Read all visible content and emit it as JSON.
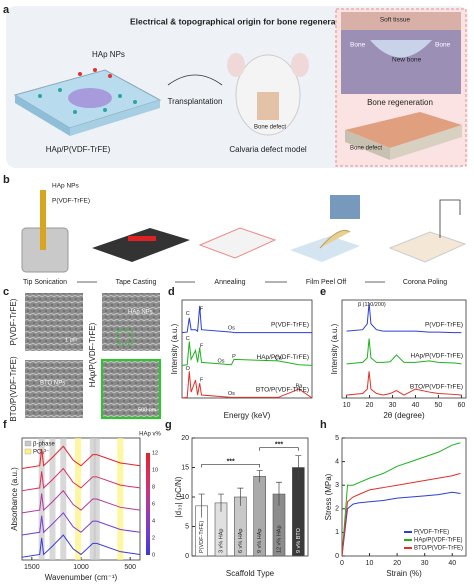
{
  "panels": [
    "a",
    "b",
    "c",
    "d",
    "e",
    "f",
    "g",
    "h"
  ],
  "panel_a": {
    "title": "Electrical & topographical origin for bone regeneration",
    "film_label": "HAp NPs",
    "film_name": "HAp/P(VDF-TrFE)",
    "arrow_label": "Transplantation",
    "defect_label": "Bone defect",
    "model_label": "Calvaria defect model",
    "inset_top": [
      "Soft tissue",
      "Bone",
      "New bone",
      "Bone"
    ],
    "inset_caption": "Bone regeneration",
    "inset_bottom": "Bone defect"
  },
  "panel_b": {
    "inputs": [
      "HAp NPs",
      "P(VDF-TrFE)"
    ],
    "steps": [
      "Tip Sonication",
      "Tape Casting",
      "Annealing",
      "Film Peel Off",
      "Corona Poling"
    ]
  },
  "panel_c": {
    "rows": [
      "P(VDF-TrFE)",
      "BTO/P(VDF-TrFE)"
    ],
    "col": "HAp/P(VDF-TrFE)",
    "np_labels": [
      "HAp NPs",
      "BTO NPs"
    ],
    "scales": [
      "1 μm",
      "500 nm"
    ]
  },
  "chart_data": [
    {
      "type": "line",
      "xlabel": "Energy (keV)",
      "ylabel": "Intensity (a.u.)",
      "xlim": [
        0,
        5
      ],
      "ylim": [
        0,
        3.3
      ],
      "legend": "inline",
      "x": [
        0,
        0.2,
        0.28,
        0.35,
        0.52,
        0.6,
        0.68,
        0.75,
        1.9,
        2.0,
        3.7,
        4.5,
        5
      ],
      "series": [
        {
          "name": "P(VDF-TrFE)",
          "color": "#2b3fd6",
          "values": [
            2.2,
            2.22,
            2.7,
            2.3,
            2.3,
            2.25,
            3.1,
            2.3,
            2.22,
            2.2,
            2.2,
            2.2,
            2.2
          ]
        },
        {
          "name": "HAp/P(VDF-TrFE)",
          "color": "#1db31d",
          "values": [
            1.1,
            1.12,
            1.9,
            1.3,
            1.6,
            1.2,
            1.7,
            1.2,
            1.12,
            1.3,
            1.25,
            1.12,
            1.1
          ]
        },
        {
          "name": "BTO/P(VDF-TrFE)",
          "color": "#e0302a",
          "values": [
            0,
            0.02,
            0.9,
            0.2,
            0.6,
            0.1,
            0.5,
            0.1,
            0.02,
            0.02,
            0.02,
            0.3,
            0
          ]
        }
      ],
      "annotations": [
        {
          "text": "C",
          "x": 0.22,
          "y": 2.85
        },
        {
          "text": "F",
          "x": 0.75,
          "y": 3.0
        },
        {
          "text": "Os",
          "x": 1.9,
          "y": 2.35
        },
        {
          "text": "C",
          "x": 0.22,
          "y": 2.0
        },
        {
          "text": "F",
          "x": 0.75,
          "y": 1.75
        },
        {
          "text": "Os",
          "x": 1.5,
          "y": 1.25
        },
        {
          "text": "P",
          "x": 2.0,
          "y": 1.4
        },
        {
          "text": "Ca",
          "x": 3.7,
          "y": 1.35
        },
        {
          "text": "O",
          "x": 0.22,
          "y": 1.0
        },
        {
          "text": "F",
          "x": 0.75,
          "y": 0.6
        },
        {
          "text": "Os",
          "x": 1.9,
          "y": 0.15
        },
        {
          "text": "Ba",
          "x": 4.5,
          "y": 0.4
        }
      ]
    },
    {
      "type": "line",
      "xlabel": "2θ (degree)",
      "ylabel": "Intensity (a.u.)",
      "xlim": [
        8,
        62
      ],
      "ylim": [
        0,
        3.3
      ],
      "xticks": [
        10,
        20,
        30,
        40,
        50,
        60
      ],
      "legend": "inline",
      "x": [
        10,
        17,
        19,
        19.8,
        20.6,
        23,
        26,
        29,
        31.7,
        35,
        40,
        46,
        50,
        57,
        60
      ],
      "series": [
        {
          "name": "P(VDF-TrFE)",
          "color": "#2b3fd6",
          "values": [
            2.25,
            2.3,
            2.5,
            3.2,
            2.5,
            2.3,
            2.25,
            2.25,
            2.25,
            2.25,
            2.25,
            2.22,
            2.22,
            2.2,
            2.2
          ]
        },
        {
          "name": "HAp/P(VDF-TrFE)",
          "color": "#1db31d",
          "values": [
            1.15,
            1.2,
            1.35,
            2.0,
            1.35,
            1.2,
            1.2,
            1.22,
            1.45,
            1.2,
            1.2,
            1.25,
            1.2,
            1.18,
            1.15
          ]
        },
        {
          "name": "BTO/P(VDF-TrFE)",
          "color": "#e0302a",
          "values": [
            0.1,
            0.15,
            0.3,
            0.9,
            0.3,
            0.15,
            0.1,
            0.15,
            0.25,
            0.1,
            0.3,
            0.2,
            0.15,
            0.12,
            0.1
          ]
        }
      ],
      "annotations": [
        {
          "text": "β (110/200)",
          "x": 21,
          "y": 3.15
        }
      ]
    },
    {
      "type": "line",
      "xlabel": "Wavenumber (cm⁻¹)",
      "ylabel": "Absorbance (a.u.)",
      "xlim": [
        1600,
        400
      ],
      "ylim": [
        0,
        4.4
      ],
      "xticks": [
        1500,
        1000,
        500
      ],
      "x": [
        1600,
        1420,
        1400,
        1380,
        1290,
        1180,
        1080,
        1000,
        880,
        840,
        600,
        400
      ],
      "bands": [
        {
          "name": "β-phase",
          "color": "#c8c8c8",
          "x": [
            1400,
            1290,
            1180,
            880,
            840
          ]
        },
        {
          "name": "PO₄³⁻",
          "color": "#fff27a",
          "x": [
            1030,
            600
          ]
        }
      ],
      "colorbar": {
        "label": "HAp v%",
        "lim": [
          0,
          12
        ],
        "ticks": [
          0,
          2,
          4,
          6,
          8,
          10,
          12
        ]
      },
      "series": [
        {
          "color": "#3b3bd6",
          "values": [
            0.1,
            0.2,
            0.8,
            0.2,
            0.5,
            0.9,
            0.4,
            0.2,
            0.6,
            0.6,
            0.3,
            0.2
          ]
        },
        {
          "color": "#7a3bd0",
          "values": [
            0.9,
            1.0,
            1.6,
            1.0,
            1.3,
            1.7,
            1.2,
            1.0,
            1.4,
            1.4,
            1.1,
            1.0
          ]
        },
        {
          "color": "#b03aa0",
          "values": [
            1.7,
            1.8,
            2.4,
            1.8,
            2.1,
            2.5,
            2.0,
            1.8,
            2.2,
            2.2,
            1.9,
            1.8
          ]
        },
        {
          "color": "#d93060",
          "values": [
            2.5,
            2.6,
            3.2,
            2.6,
            2.9,
            3.3,
            2.8,
            2.6,
            3.0,
            3.0,
            2.7,
            2.6
          ]
        },
        {
          "color": "#e8202a",
          "values": [
            3.3,
            3.4,
            4.0,
            3.4,
            3.7,
            4.1,
            3.6,
            3.4,
            3.8,
            3.8,
            3.5,
            3.4
          ]
        }
      ]
    },
    {
      "type": "bar",
      "xlabel": "Scaffold Type",
      "ylabel": "|d₃₃| (pC/N)",
      "ylim": [
        0,
        20
      ],
      "yticks": [
        0,
        5,
        10,
        15,
        20
      ],
      "categories": [
        "P(VDF-TrFE)",
        "3 v% HAp",
        "6 v% HAp",
        "9 v% HAp",
        "12 v% HAp",
        "9 v% BTO"
      ],
      "values": [
        8.5,
        9,
        10,
        13.5,
        10.5,
        15
      ],
      "errors": [
        2,
        1.5,
        1.5,
        1,
        2,
        2
      ],
      "colors": [
        "#ffffff",
        "#e0e0e0",
        "#c8c8c8",
        "#aaaaaa",
        "#8c8c8c",
        "#3a3a3a"
      ],
      "significance": [
        {
          "from": 0,
          "to": 3,
          "label": "***"
        },
        {
          "from": 3,
          "to": 5,
          "label": "***"
        }
      ]
    },
    {
      "type": "line",
      "xlabel": "Strain (%)",
      "ylabel": "Stress (MPa)",
      "xlim": [
        0,
        45
      ],
      "ylim": [
        0,
        5
      ],
      "xticks": [
        0,
        10,
        20,
        30,
        40
      ],
      "yticks": [
        0,
        1,
        2,
        3,
        4,
        5
      ],
      "legend": "lower right",
      "x": [
        0,
        2,
        4,
        6,
        10,
        15,
        20,
        25,
        30,
        35,
        40,
        43
      ],
      "series": [
        {
          "name": "P(VDF-TrFE)",
          "color": "#2b3fd6",
          "values": [
            0,
            2.0,
            2.2,
            2.25,
            2.3,
            2.35,
            2.45,
            2.5,
            2.55,
            2.6,
            2.7,
            2.65
          ]
        },
        {
          "name": "HAp/P(VDF-TrFE)",
          "color": "#1db31d",
          "values": [
            0,
            3.0,
            3.0,
            3.1,
            3.3,
            3.5,
            3.8,
            4.0,
            4.2,
            4.4,
            4.7,
            4.8
          ]
        },
        {
          "name": "BTO/P(VDF-TrFE)",
          "color": "#e0302a",
          "values": [
            0,
            2.3,
            2.5,
            2.6,
            2.8,
            2.9,
            3.0,
            3.1,
            3.2,
            3.3,
            3.4,
            3.5
          ]
        }
      ]
    }
  ]
}
